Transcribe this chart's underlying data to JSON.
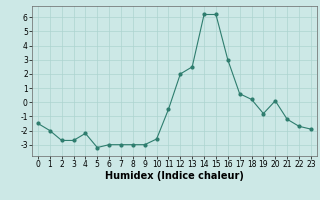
{
  "x": [
    0,
    1,
    2,
    3,
    4,
    5,
    6,
    7,
    8,
    9,
    10,
    11,
    12,
    13,
    14,
    15,
    16,
    17,
    18,
    19,
    20,
    21,
    22,
    23
  ],
  "y": [
    -1.5,
    -2.0,
    -2.7,
    -2.7,
    -2.2,
    -3.2,
    -3.0,
    -3.0,
    -3.0,
    -3.0,
    -2.6,
    -0.5,
    2.0,
    2.5,
    6.2,
    6.2,
    3.0,
    0.6,
    0.2,
    -0.8,
    0.1,
    -1.2,
    -1.7,
    -1.9
  ],
  "xlabel": "Humidex (Indice chaleur)",
  "ylim": [
    -3.8,
    6.8
  ],
  "xlim": [
    -0.5,
    23.5
  ],
  "yticks": [
    -3,
    -2,
    -1,
    0,
    1,
    2,
    3,
    4,
    5,
    6
  ],
  "xticks": [
    0,
    1,
    2,
    3,
    4,
    5,
    6,
    7,
    8,
    9,
    10,
    11,
    12,
    13,
    14,
    15,
    16,
    17,
    18,
    19,
    20,
    21,
    22,
    23
  ],
  "line_color": "#2e7d6e",
  "marker_color": "#2e7d6e",
  "bg_color": "#cce8e6",
  "grid_color": "#add4d0",
  "fig_bg": "#cce8e6",
  "tick_fontsize": 5.5,
  "xlabel_fontsize": 7,
  "linewidth": 0.8,
  "markersize": 2.0
}
